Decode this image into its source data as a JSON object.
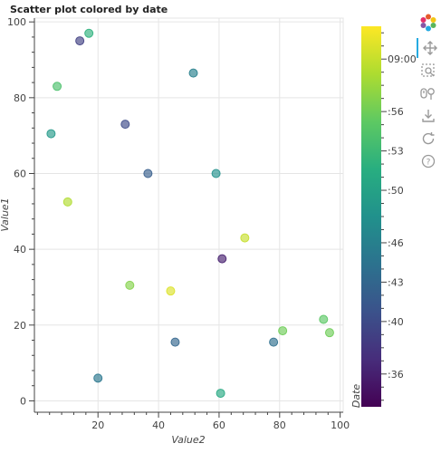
{
  "chart_data": {
    "type": "scatter",
    "title": "Scatter plot colored by date",
    "xlabel": "Value2",
    "ylabel": "Value1",
    "xlim": [
      -1,
      101
    ],
    "ylim": [
      -3,
      101
    ],
    "xticks": [
      20,
      40,
      60,
      80,
      100
    ],
    "yticks": [
      0,
      20,
      40,
      60,
      80,
      100
    ],
    "grid": true,
    "colorbar": {
      "label": "Date",
      "range_minutes": [
        -26.5,
        2.5
      ],
      "ticks": [
        {
          "label": ":36",
          "minute": -24
        },
        {
          "label": ":40",
          "minute": -20
        },
        {
          "label": ":43",
          "minute": -17
        },
        {
          "label": ":46",
          "minute": -14
        },
        {
          "label": ":50",
          "minute": -10
        },
        {
          "label": ":53",
          "minute": -7
        },
        {
          "label": ":56",
          "minute": -4
        },
        {
          "label": "09:00",
          "minute": 0
        }
      ]
    },
    "colormap": "viridis",
    "points": [
      {
        "x": 14.0,
        "y": 95.0,
        "minute": -21
      },
      {
        "x": 17.0,
        "y": 97.0,
        "minute": -8
      },
      {
        "x": 6.5,
        "y": 83.0,
        "minute": -6
      },
      {
        "x": 51.5,
        "y": 86.5,
        "minute": -14
      },
      {
        "x": 29.0,
        "y": 73.0,
        "minute": -20
      },
      {
        "x": 4.5,
        "y": 70.5,
        "minute": -11
      },
      {
        "x": 36.5,
        "y": 60.0,
        "minute": -18
      },
      {
        "x": 59.0,
        "y": 60.0,
        "minute": -12
      },
      {
        "x": 10.0,
        "y": 52.5,
        "minute": -1
      },
      {
        "x": 68.5,
        "y": 43.0,
        "minute": 0
      },
      {
        "x": 61.0,
        "y": 37.5,
        "minute": -24
      },
      {
        "x": 30.5,
        "y": 30.5,
        "minute": -3
      },
      {
        "x": 44.0,
        "y": 29.0,
        "minute": 1
      },
      {
        "x": 94.5,
        "y": 21.5,
        "minute": -5
      },
      {
        "x": 81.0,
        "y": 18.5,
        "minute": -4
      },
      {
        "x": 96.5,
        "y": 18.0,
        "minute": -4
      },
      {
        "x": 45.5,
        "y": 15.5,
        "minute": -17
      },
      {
        "x": 78.0,
        "y": 15.5,
        "minute": -16
      },
      {
        "x": 20.0,
        "y": 6.0,
        "minute": -15
      },
      {
        "x": 60.5,
        "y": 2.0,
        "minute": -9
      }
    ]
  },
  "toolbar": {
    "tools": [
      {
        "name": "bokeh-logo",
        "icon": "bokeh-logo-icon",
        "interactable": false
      },
      {
        "name": "pan-tool",
        "icon": "pan-icon",
        "interactable": true,
        "active": true
      },
      {
        "name": "box-zoom-tool",
        "icon": "box-zoom-icon",
        "interactable": true
      },
      {
        "name": "wheel-zoom-tool",
        "icon": "wheel-zoom-icon",
        "interactable": true
      },
      {
        "name": "save-tool",
        "icon": "save-icon",
        "interactable": true
      },
      {
        "name": "reset-tool",
        "icon": "reset-icon",
        "interactable": true
      },
      {
        "name": "help-tool",
        "icon": "help-icon",
        "interactable": true
      }
    ],
    "active_color": "#26aae1"
  }
}
